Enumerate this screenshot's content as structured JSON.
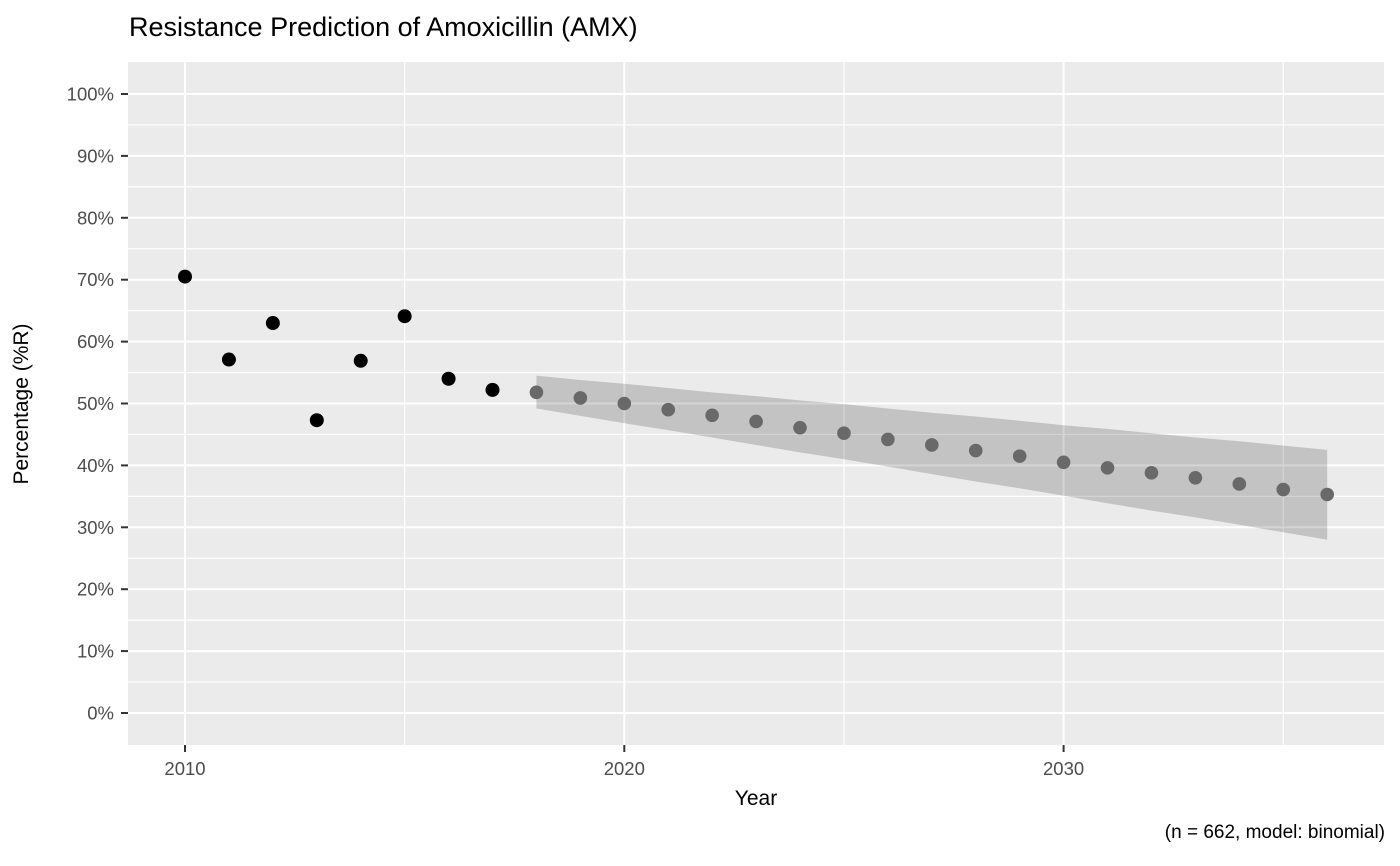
{
  "chart_data": {
    "type": "scatter",
    "title": "Resistance Prediction of Amoxicillin (AMX)",
    "xlabel": "Year",
    "ylabel": "Percentage (%R)",
    "caption": "(n = 662, model: binomial)",
    "xlim": [
      2010,
      2036
    ],
    "ylim": [
      0,
      100
    ],
    "grid": true,
    "legend": "none",
    "x_major_ticks": [
      {
        "v": 2010,
        "label": "2010"
      },
      {
        "v": 2020,
        "label": "2020"
      },
      {
        "v": 2030,
        "label": "2030"
      }
    ],
    "x_minor_ticks": [
      2015,
      2025,
      2035
    ],
    "y_major_ticks": [
      {
        "v": 0,
        "label": "0%"
      },
      {
        "v": 10,
        "label": "10%"
      },
      {
        "v": 20,
        "label": "20%"
      },
      {
        "v": 30,
        "label": "30%"
      },
      {
        "v": 40,
        "label": "40%"
      },
      {
        "v": 50,
        "label": "50%"
      },
      {
        "v": 60,
        "label": "60%"
      },
      {
        "v": 70,
        "label": "70%"
      },
      {
        "v": 80,
        "label": "80%"
      },
      {
        "v": 90,
        "label": "90%"
      },
      {
        "v": 100,
        "label": "100%"
      }
    ],
    "y_minor_ticks": [
      5,
      15,
      25,
      35,
      45,
      55,
      65,
      75,
      85,
      95
    ],
    "series": [
      {
        "name": "observed",
        "color": "#000000",
        "points": [
          {
            "year": 2010,
            "value": 70.5
          },
          {
            "year": 2011,
            "value": 57.1
          },
          {
            "year": 2012,
            "value": 63.0
          },
          {
            "year": 2013,
            "value": 47.3
          },
          {
            "year": 2014,
            "value": 56.9
          },
          {
            "year": 2015,
            "value": 64.1
          },
          {
            "year": 2016,
            "value": 54.0
          },
          {
            "year": 2017,
            "value": 52.2
          }
        ]
      },
      {
        "name": "predicted",
        "color": "#696969",
        "points": [
          {
            "year": 2018,
            "value": 51.8,
            "ci_low": 49.2,
            "ci_high": 54.5
          },
          {
            "year": 2019,
            "value": 50.9,
            "ci_low": 48.0,
            "ci_high": 53.8
          },
          {
            "year": 2020,
            "value": 50.0,
            "ci_low": 46.8,
            "ci_high": 53.2
          },
          {
            "year": 2021,
            "value": 49.0,
            "ci_low": 45.7,
            "ci_high": 52.5
          },
          {
            "year": 2022,
            "value": 48.1,
            "ci_low": 44.5,
            "ci_high": 51.8
          },
          {
            "year": 2023,
            "value": 47.1,
            "ci_low": 43.3,
            "ci_high": 51.2
          },
          {
            "year": 2024,
            "value": 46.1,
            "ci_low": 42.1,
            "ci_high": 50.5
          },
          {
            "year": 2025,
            "value": 45.2,
            "ci_low": 41.0,
            "ci_high": 49.9
          },
          {
            "year": 2026,
            "value": 44.2,
            "ci_low": 39.8,
            "ci_high": 49.2
          },
          {
            "year": 2027,
            "value": 43.3,
            "ci_low": 38.6,
            "ci_high": 48.5
          },
          {
            "year": 2028,
            "value": 42.4,
            "ci_low": 37.4,
            "ci_high": 47.9
          },
          {
            "year": 2029,
            "value": 41.5,
            "ci_low": 36.3,
            "ci_high": 47.2
          },
          {
            "year": 2030,
            "value": 40.5,
            "ci_low": 35.1,
            "ci_high": 46.5
          },
          {
            "year": 2031,
            "value": 39.6,
            "ci_low": 33.9,
            "ci_high": 45.9
          },
          {
            "year": 2032,
            "value": 38.8,
            "ci_low": 32.7,
            "ci_high": 45.2
          },
          {
            "year": 2033,
            "value": 38.0,
            "ci_low": 31.6,
            "ci_high": 44.5
          },
          {
            "year": 2034,
            "value": 37.0,
            "ci_low": 30.4,
            "ci_high": 43.9
          },
          {
            "year": 2035,
            "value": 36.1,
            "ci_low": 29.2,
            "ci_high": 43.2
          },
          {
            "year": 2036,
            "value": 35.3,
            "ci_low": 28.0,
            "ci_high": 42.5
          }
        ]
      }
    ],
    "colors": {
      "panel_background": "#ebebeb",
      "gridline": "#ffffff",
      "tick_label": "#4d4d4d",
      "tick_mark": "#333333",
      "ribbon_fill": "#000000",
      "ribbon_opacity": 0.17,
      "observed_point": "#000000",
      "predicted_point": "#696969"
    }
  }
}
